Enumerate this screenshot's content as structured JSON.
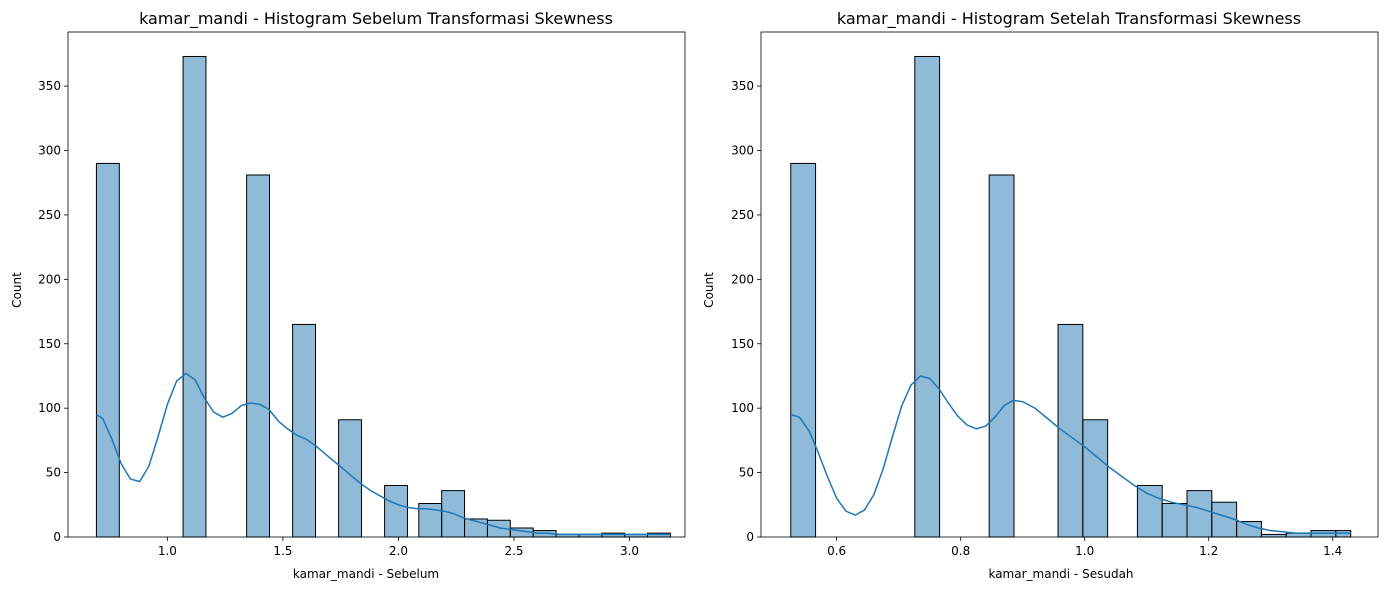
{
  "chart_data": [
    {
      "type": "bar",
      "title": "kamar_mandi - Histogram Sebelum Transformasi Skewness",
      "xlabel": "kamar_mandi - Sebelum",
      "ylabel": "Count",
      "xlim": [
        0.57,
        3.24
      ],
      "ylim": [
        0,
        392
      ],
      "xticks": [
        1.0,
        1.5,
        2.0,
        2.5,
        3.0
      ],
      "xtick_labels": [
        "1.0",
        "1.5",
        "2.0",
        "2.5",
        "3.0"
      ],
      "yticks": [
        0,
        50,
        100,
        150,
        200,
        250,
        300,
        350
      ],
      "ytick_labels": [
        "0",
        "50",
        "100",
        "150",
        "200",
        "250",
        "300",
        "350"
      ],
      "bars": [
        {
          "x0": 0.693,
          "x1": 0.792,
          "count": 290
        },
        {
          "x0": 1.068,
          "x1": 1.167,
          "count": 373
        },
        {
          "x0": 1.343,
          "x1": 1.442,
          "count": 281
        },
        {
          "x0": 1.542,
          "x1": 1.641,
          "count": 165
        },
        {
          "x0": 1.741,
          "x1": 1.84,
          "count": 91
        },
        {
          "x0": 1.94,
          "x1": 2.039,
          "count": 40
        },
        {
          "x0": 2.088,
          "x1": 2.187,
          "count": 26
        },
        {
          "x0": 2.187,
          "x1": 2.286,
          "count": 36
        },
        {
          "x0": 2.286,
          "x1": 2.385,
          "count": 14
        },
        {
          "x0": 2.385,
          "x1": 2.484,
          "count": 13
        },
        {
          "x0": 2.484,
          "x1": 2.583,
          "count": 7
        },
        {
          "x0": 2.583,
          "x1": 2.682,
          "count": 5
        },
        {
          "x0": 2.682,
          "x1": 2.781,
          "count": 2
        },
        {
          "x0": 2.781,
          "x1": 2.88,
          "count": 2
        },
        {
          "x0": 2.88,
          "x1": 2.979,
          "count": 3
        },
        {
          "x0": 2.979,
          "x1": 3.078,
          "count": 2
        },
        {
          "x0": 3.078,
          "x1": 3.177,
          "count": 3
        }
      ],
      "kde": [
        [
          0.693,
          95
        ],
        [
          0.72,
          92
        ],
        [
          0.76,
          76
        ],
        [
          0.8,
          57
        ],
        [
          0.84,
          45
        ],
        [
          0.88,
          43
        ],
        [
          0.92,
          55
        ],
        [
          0.96,
          78
        ],
        [
          1.0,
          103
        ],
        [
          1.04,
          121
        ],
        [
          1.08,
          127
        ],
        [
          1.12,
          122
        ],
        [
          1.16,
          108
        ],
        [
          1.2,
          97
        ],
        [
          1.24,
          93
        ],
        [
          1.28,
          96
        ],
        [
          1.32,
          102
        ],
        [
          1.36,
          104
        ],
        [
          1.4,
          103
        ],
        [
          1.44,
          99
        ],
        [
          1.48,
          90
        ],
        [
          1.52,
          84
        ],
        [
          1.56,
          79
        ],
        [
          1.6,
          76
        ],
        [
          1.64,
          71
        ],
        [
          1.68,
          65
        ],
        [
          1.72,
          59
        ],
        [
          1.76,
          53
        ],
        [
          1.8,
          47
        ],
        [
          1.84,
          41
        ],
        [
          1.88,
          36
        ],
        [
          1.92,
          32
        ],
        [
          1.96,
          28
        ],
        [
          2.0,
          25
        ],
        [
          2.04,
          23
        ],
        [
          2.08,
          22
        ],
        [
          2.12,
          22
        ],
        [
          2.16,
          21
        ],
        [
          2.2,
          20
        ],
        [
          2.24,
          18
        ],
        [
          2.28,
          15
        ],
        [
          2.32,
          13
        ],
        [
          2.36,
          11
        ],
        [
          2.4,
          9
        ],
        [
          2.44,
          7
        ],
        [
          2.48,
          6
        ],
        [
          2.52,
          5
        ],
        [
          2.56,
          4
        ],
        [
          2.6,
          3
        ],
        [
          2.64,
          3
        ],
        [
          2.7,
          2
        ],
        [
          2.76,
          2
        ],
        [
          2.82,
          2
        ],
        [
          2.88,
          2
        ],
        [
          2.94,
          2
        ],
        [
          3.0,
          2
        ],
        [
          3.06,
          2
        ],
        [
          3.12,
          2
        ],
        [
          3.177,
          2
        ]
      ]
    },
    {
      "type": "bar",
      "title": "kamar_mandi - Histogram Setelah Transformasi Skewness",
      "xlabel": "kamar_mandi - Sesudah",
      "ylabel": "Count",
      "xlim": [
        0.478,
        1.473
      ],
      "ylim": [
        0,
        392
      ],
      "xticks": [
        0.6,
        0.8,
        1.0,
        1.2,
        1.4
      ],
      "xtick_labels": [
        "0.6",
        "0.8",
        "1.0",
        "1.2",
        "1.4"
      ],
      "yticks": [
        0,
        50,
        100,
        150,
        200,
        250,
        300,
        350
      ],
      "ytick_labels": [
        "0",
        "50",
        "100",
        "150",
        "200",
        "250",
        "300",
        "350"
      ],
      "bars": [
        {
          "x0": 0.526,
          "x1": 0.566,
          "count": 290
        },
        {
          "x0": 0.726,
          "x1": 0.766,
          "count": 373
        },
        {
          "x0": 0.846,
          "x1": 0.886,
          "count": 281
        },
        {
          "x0": 0.957,
          "x1": 0.997,
          "count": 165
        },
        {
          "x0": 0.997,
          "x1": 1.037,
          "count": 91
        },
        {
          "x0": 1.085,
          "x1": 1.125,
          "count": 40
        },
        {
          "x0": 1.125,
          "x1": 1.165,
          "count": 26
        },
        {
          "x0": 1.165,
          "x1": 1.205,
          "count": 36
        },
        {
          "x0": 1.205,
          "x1": 1.245,
          "count": 27
        },
        {
          "x0": 1.245,
          "x1": 1.285,
          "count": 12
        },
        {
          "x0": 1.285,
          "x1": 1.325,
          "count": 2
        },
        {
          "x0": 1.325,
          "x1": 1.365,
          "count": 3
        },
        {
          "x0": 1.365,
          "x1": 1.405,
          "count": 5
        },
        {
          "x0": 1.405,
          "x1": 1.429,
          "count": 5
        }
      ],
      "kde": [
        [
          0.526,
          95
        ],
        [
          0.54,
          93
        ],
        [
          0.556,
          82
        ],
        [
          0.57,
          66
        ],
        [
          0.585,
          47
        ],
        [
          0.6,
          30
        ],
        [
          0.615,
          20
        ],
        [
          0.63,
          17
        ],
        [
          0.645,
          21
        ],
        [
          0.66,
          33
        ],
        [
          0.675,
          53
        ],
        [
          0.69,
          78
        ],
        [
          0.705,
          102
        ],
        [
          0.72,
          118
        ],
        [
          0.735,
          125
        ],
        [
          0.75,
          123
        ],
        [
          0.765,
          115
        ],
        [
          0.78,
          104
        ],
        [
          0.795,
          94
        ],
        [
          0.81,
          87
        ],
        [
          0.825,
          84
        ],
        [
          0.84,
          86
        ],
        [
          0.855,
          93
        ],
        [
          0.87,
          102
        ],
        [
          0.885,
          106
        ],
        [
          0.9,
          105
        ],
        [
          0.92,
          100
        ],
        [
          0.94,
          92
        ],
        [
          0.96,
          84
        ],
        [
          0.98,
          77
        ],
        [
          1.0,
          70
        ],
        [
          1.02,
          62
        ],
        [
          1.04,
          54
        ],
        [
          1.06,
          47
        ],
        [
          1.08,
          40
        ],
        [
          1.1,
          34
        ],
        [
          1.12,
          30
        ],
        [
          1.14,
          27
        ],
        [
          1.16,
          25
        ],
        [
          1.18,
          23
        ],
        [
          1.2,
          20
        ],
        [
          1.22,
          17
        ],
        [
          1.24,
          14
        ],
        [
          1.26,
          10
        ],
        [
          1.28,
          7
        ],
        [
          1.3,
          5
        ],
        [
          1.32,
          4
        ],
        [
          1.34,
          3
        ],
        [
          1.36,
          3
        ],
        [
          1.38,
          3
        ],
        [
          1.4,
          3
        ],
        [
          1.429,
          3
        ]
      ]
    }
  ],
  "colors": {
    "bar_fill": "#1f77b4",
    "bar_fill_opacity": 0.5,
    "bar_edge": "#000000",
    "kde_line": "#1f77b4"
  }
}
